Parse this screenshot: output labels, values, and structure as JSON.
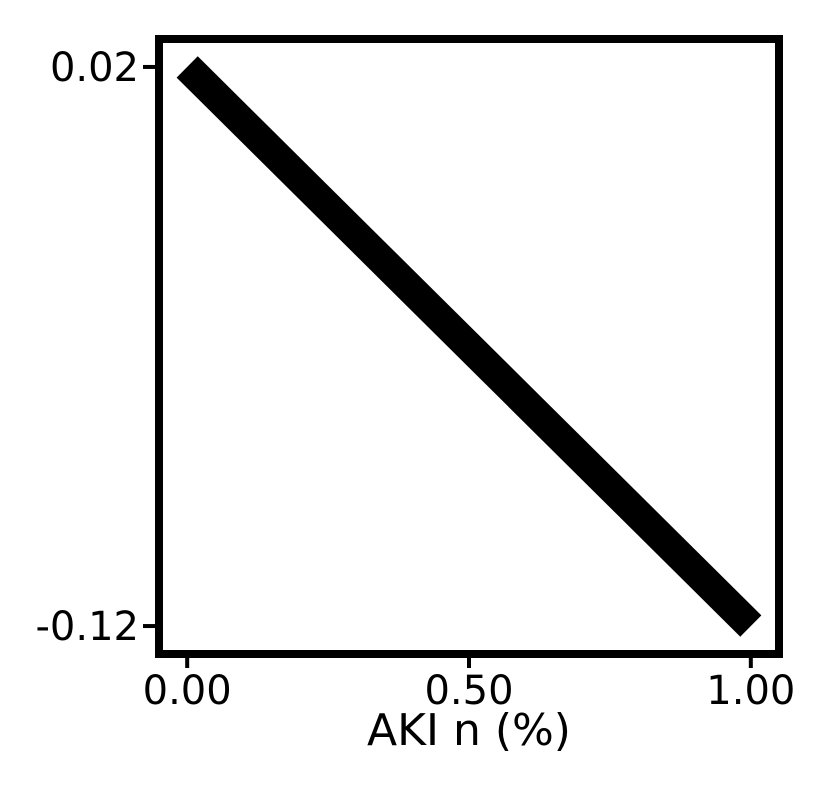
{
  "chart_data": {
    "type": "line",
    "title": "",
    "xlabel": "AKI n (%)",
    "ylabel": "",
    "x": [
      0.0,
      1.0
    ],
    "series": [
      {
        "values": [
          0.02,
          -0.12
        ],
        "color": "#000000"
      }
    ],
    "xlim": [
      -0.05,
      1.05
    ],
    "ylim": [
      -0.127,
      0.027
    ],
    "xticks": [
      {
        "value": 0.0,
        "label": "0.00"
      },
      {
        "value": 0.5,
        "label": "0.50"
      },
      {
        "value": 1.0,
        "label": "1.00"
      }
    ],
    "yticks": [
      {
        "value": 0.02,
        "label": "0.02"
      },
      {
        "value": -0.12,
        "label": "-0.12"
      }
    ],
    "grid": false,
    "legend": "none"
  }
}
